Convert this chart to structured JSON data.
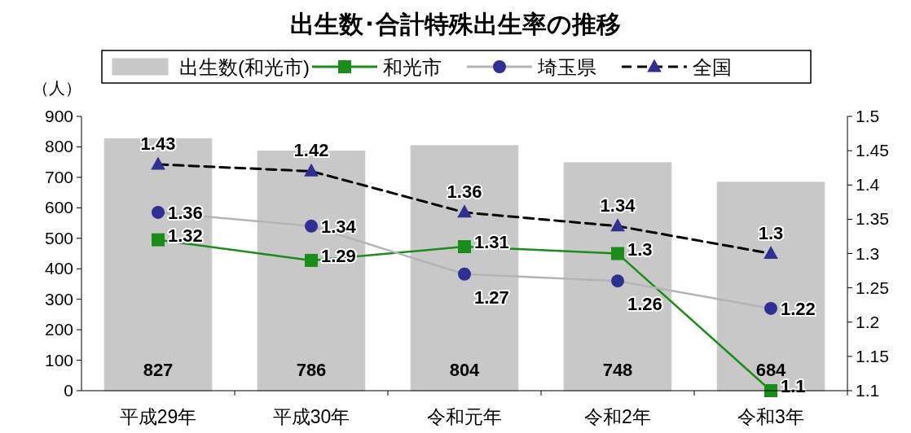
{
  "chart_data": {
    "type": "bar",
    "title": "出生数･合計特殊出生率の推移",
    "ylabel": "（人）",
    "categories": [
      "平成29年",
      "平成30年",
      "令和元年",
      "令和2年",
      "令和3年"
    ],
    "series": [
      {
        "name": "出生数(和光市)",
        "color": "#c8c8c8",
        "values": [
          827,
          786,
          804,
          748,
          684
        ]
      },
      {
        "name": "和光市",
        "type": "line",
        "axis": "y2",
        "color": "#1a8c1a",
        "marker": "square",
        "values": [
          1.32,
          1.29,
          1.31,
          1.3,
          1.1
        ]
      },
      {
        "name": "埼玉県",
        "type": "line",
        "axis": "y2",
        "color": "#b4b4b4",
        "marker": "circle",
        "values": [
          1.36,
          1.34,
          1.27,
          1.26,
          1.22
        ]
      },
      {
        "name": "全国",
        "type": "line",
        "axis": "y2",
        "color": "#000000",
        "marker": "triangle",
        "line_style": "dashed",
        "values": [
          1.43,
          1.42,
          1.36,
          1.34,
          1.3
        ]
      }
    ],
    "ylim": [
      0,
      900
    ],
    "yticks": [
      0,
      100,
      200,
      300,
      400,
      500,
      600,
      700,
      800,
      900
    ],
    "y2lim": [
      1.1,
      1.5
    ],
    "y2ticks": [
      1.1,
      1.15,
      1.2,
      1.25,
      1.3,
      1.35,
      1.4,
      1.45,
      1.5
    ],
    "data_labels": true,
    "legend": "top",
    "grid": false
  }
}
